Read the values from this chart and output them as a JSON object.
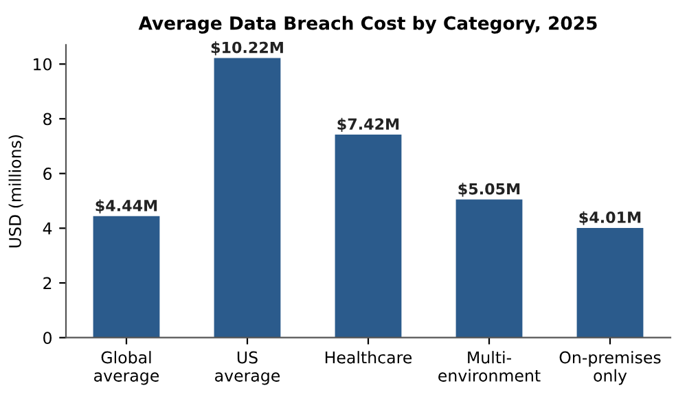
{
  "chart_data": {
    "type": "bar",
    "title": "Average Data Breach Cost by Category, 2025",
    "ylabel": "USD (millions)",
    "categories": [
      "Global\naverage",
      "US\naverage",
      "Healthcare",
      "Multi-\nenvironment",
      "On-premises\nonly"
    ],
    "values": [
      4.44,
      10.22,
      7.42,
      5.05,
      4.01
    ],
    "value_labels": [
      "$4.44M",
      "$10.22M",
      "$7.42M",
      "$5.05M",
      "$4.01M"
    ],
    "color": "#2b5b8c",
    "ylim": [
      0,
      10.7
    ],
    "yticks": [
      0,
      2,
      4,
      6,
      8,
      10
    ],
    "grid": false
  }
}
